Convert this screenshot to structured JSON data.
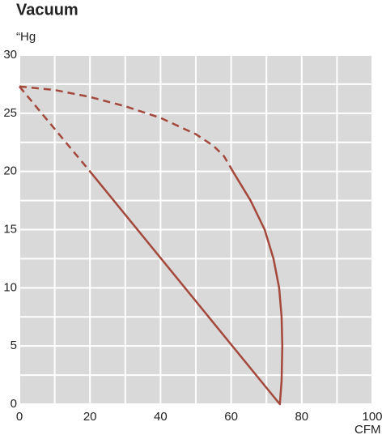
{
  "chart_data": {
    "type": "line",
    "title": "Vacuum",
    "y_label": "“Hg",
    "x_label": "CFM",
    "xlim": [
      0,
      100
    ],
    "xticks": [
      0,
      20,
      40,
      60,
      80,
      100
    ],
    "ylim": [
      0,
      30
    ],
    "yticks": [
      0,
      5,
      10,
      15,
      20,
      25,
      30
    ],
    "grid": true,
    "lines": [
      {
        "style": "solid",
        "color": "#a3483b",
        "x": [
          20,
          73.8,
          74.3,
          74.5,
          74.3,
          73.6,
          72,
          69.5,
          65.5,
          60.5
        ],
        "y": [
          20,
          0,
          2,
          5,
          7.5,
          10,
          12.5,
          15,
          17.5,
          20
        ]
      },
      {
        "style": "dashed",
        "color": "#a3483b",
        "x": [
          0,
          20
        ],
        "y": [
          27.3,
          20
        ]
      },
      {
        "style": "dashed",
        "color": "#a3483b",
        "x": [
          0,
          10,
          20,
          30,
          40,
          50,
          55,
          58,
          60.5
        ],
        "y": [
          27.3,
          27,
          26.4,
          25.6,
          24.6,
          23.2,
          22.2,
          21.3,
          20
        ]
      }
    ]
  }
}
